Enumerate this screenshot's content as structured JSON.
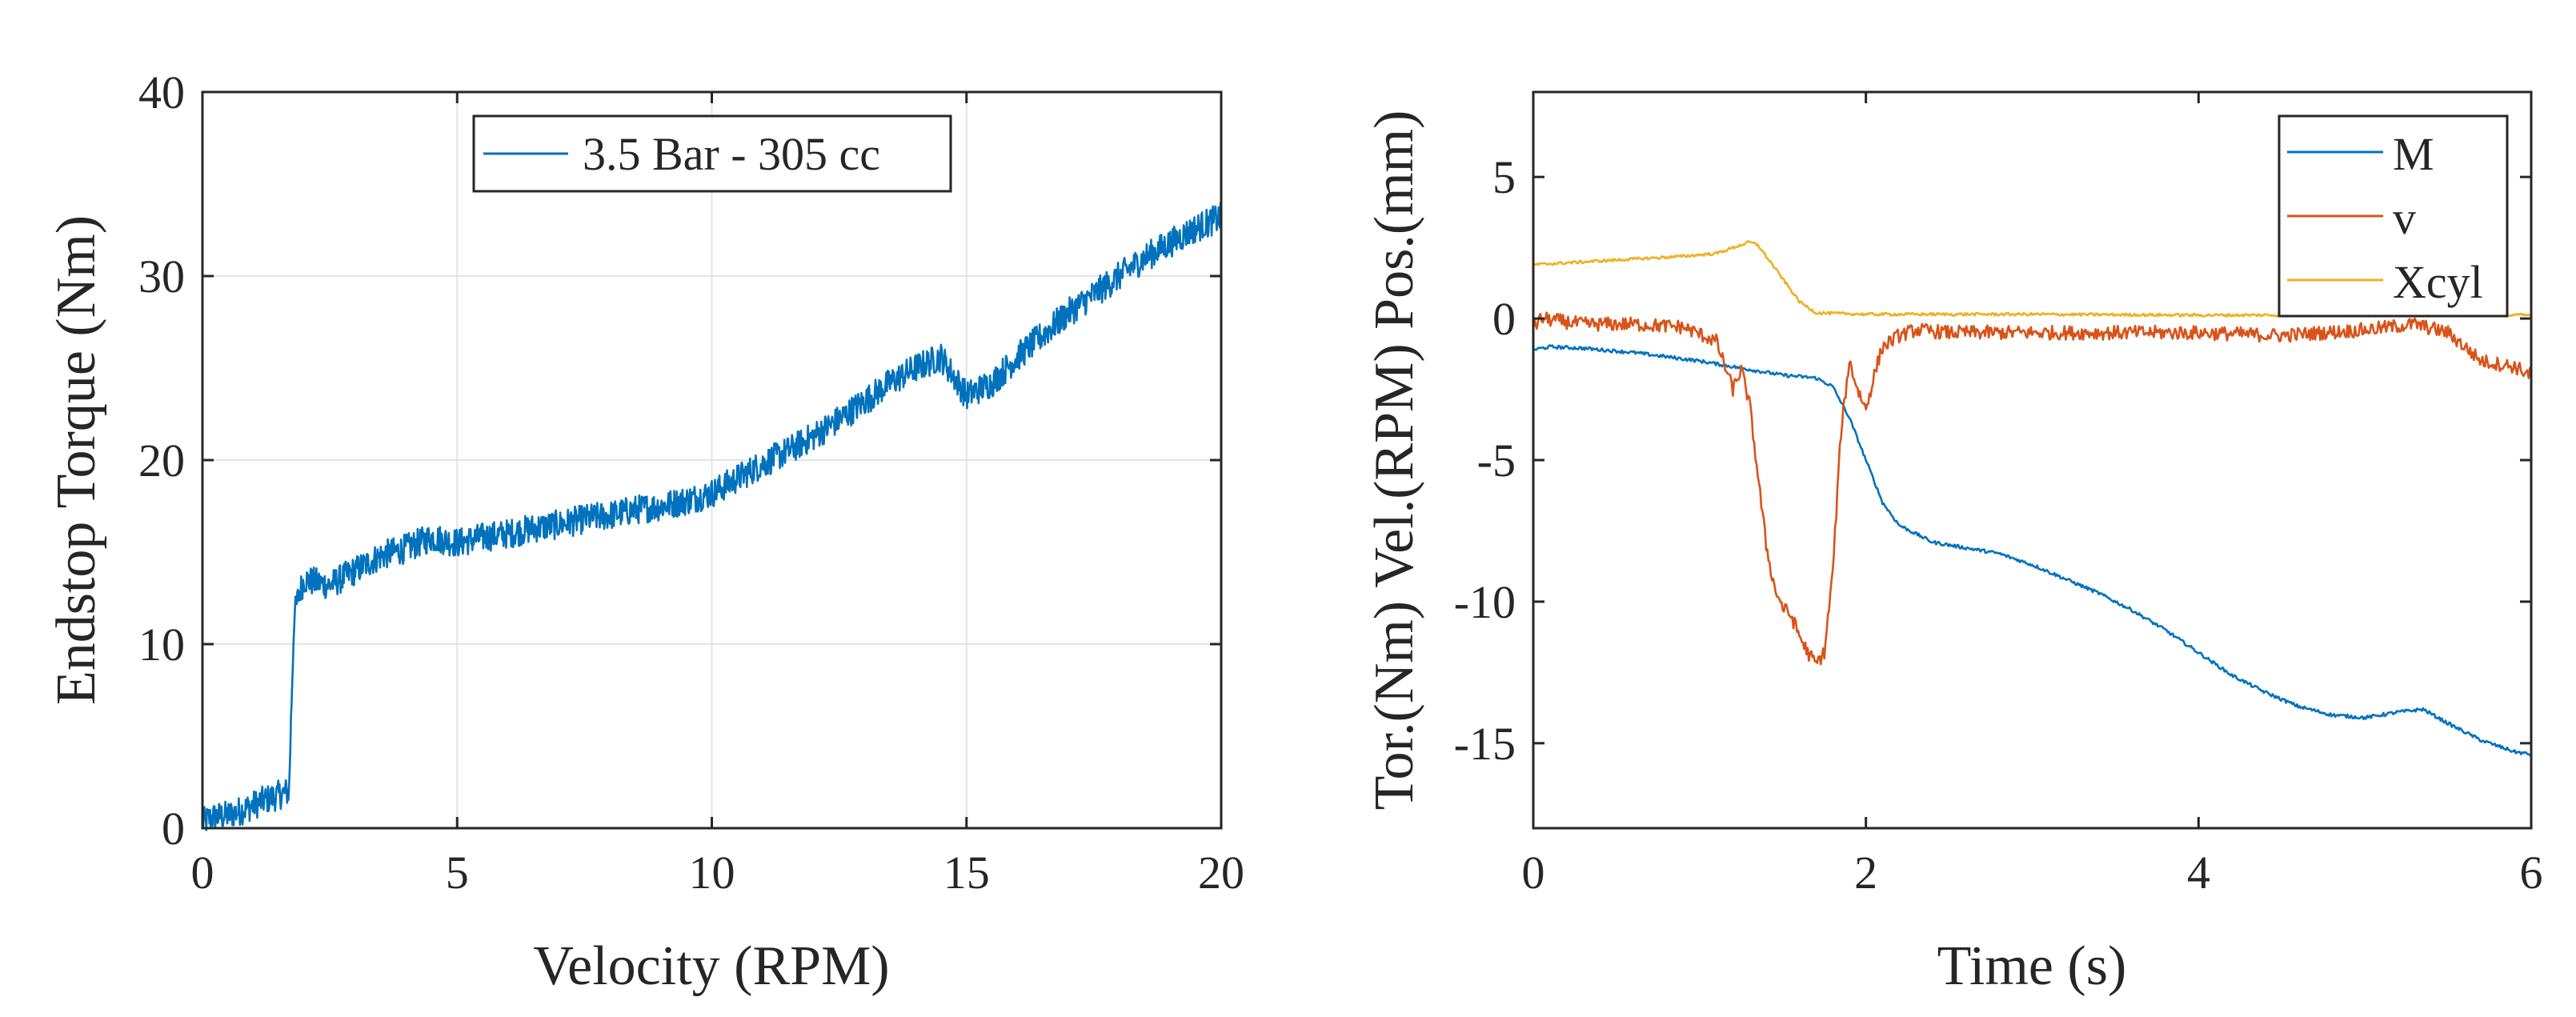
{
  "chart_data": [
    {
      "type": "line",
      "xlabel": "Velocity (RPM)",
      "ylabel": "Endstop Torque (Nm)",
      "xlim": [
        0,
        20
      ],
      "ylim": [
        0,
        40
      ],
      "xticks": [
        "0",
        "5",
        "10",
        "15",
        "20"
      ],
      "yticks": [
        "0",
        "10",
        "20",
        "30",
        "40"
      ],
      "grid": true,
      "legend_position": "top-center",
      "series": [
        {
          "name": "3.5 Bar - 305 cc",
          "color": "#0072BD",
          "x": [
            0,
            0.2,
            0.5,
            0.8,
            1.2,
            1.5,
            1.7,
            1.75,
            1.8,
            1.9,
            2.0,
            2.5,
            3.0,
            3.5,
            4.0,
            4.5,
            5.0,
            5.5,
            6.0,
            6.5,
            7.0,
            7.5,
            8.0,
            8.5,
            9.0,
            9.5,
            10.0,
            10.5,
            11.0,
            11.5,
            12.0,
            12.5,
            13.0,
            13.5,
            14.0,
            14.5,
            15.0,
            15.5,
            16.0,
            16.5,
            17.0,
            17.5,
            18.0,
            18.5,
            19.0,
            19.5,
            20.0
          ],
          "y": [
            0.3,
            0.6,
            0.7,
            1.0,
            1.5,
            1.8,
            2.0,
            7.0,
            11.5,
            12.8,
            13.5,
            13.2,
            14.0,
            14.8,
            15.2,
            15.8,
            15.5,
            15.8,
            16.0,
            16.3,
            16.5,
            16.8,
            17.0,
            17.3,
            17.5,
            17.8,
            18.2,
            19.0,
            19.8,
            20.5,
            21.3,
            22.2,
            23.2,
            24.2,
            25.0,
            25.6,
            23.5,
            24.2,
            25.6,
            26.8,
            28.0,
            29.0,
            30.0,
            31.0,
            31.8,
            32.6,
            33.2
          ],
          "noise": 0.8
        }
      ]
    },
    {
      "type": "line",
      "xlabel": "Time (s)",
      "ylabel": "Tor.(Nm) Vel.(RPM) Pos.(mm)",
      "xlim": [
        0,
        6
      ],
      "ylim": [
        -18,
        8
      ],
      "xticks": [
        "0",
        "2",
        "4",
        "6"
      ],
      "yticks": [
        "5",
        "0",
        "-5",
        "-10",
        "-15"
      ],
      "grid": false,
      "legend_position": "top-right",
      "series": [
        {
          "name": "M",
          "color": "#0072BD",
          "x": [
            0,
            0.1,
            0.3,
            0.6,
            1.0,
            1.3,
            1.5,
            1.7,
            1.8,
            1.9,
            2.0,
            2.1,
            2.2,
            2.4,
            2.6,
            2.8,
            3.0,
            3.2,
            3.4,
            3.6,
            3.8,
            4.0,
            4.2,
            4.4,
            4.6,
            4.8,
            5.0,
            5.2,
            5.35,
            5.5,
            5.7,
            5.9,
            6.0
          ],
          "y": [
            -1.1,
            -1.0,
            -1.05,
            -1.2,
            -1.5,
            -1.8,
            -2.0,
            -2.1,
            -2.4,
            -3.5,
            -5.0,
            -6.5,
            -7.3,
            -7.9,
            -8.1,
            -8.3,
            -8.7,
            -9.2,
            -9.7,
            -10.3,
            -11.0,
            -11.8,
            -12.6,
            -13.2,
            -13.7,
            -14.0,
            -14.1,
            -13.9,
            -13.8,
            -14.3,
            -14.9,
            -15.3,
            -15.4
          ],
          "noise": 0.06
        },
        {
          "name": "v",
          "color": "#D95319",
          "x": [
            0,
            0.05,
            0.3,
            0.6,
            0.9,
            1.1,
            1.2,
            1.25,
            1.3,
            1.35,
            1.4,
            1.45,
            1.5,
            1.55,
            1.6,
            1.65,
            1.7,
            1.75,
            1.8,
            1.85,
            1.9,
            1.95,
            2.0,
            2.05,
            2.1,
            2.2,
            2.3,
            2.5,
            3.0,
            3.5,
            4.0,
            4.5,
            5.0,
            5.3,
            5.5,
            5.7,
            5.9,
            6.0
          ],
          "y": [
            -0.3,
            0.0,
            -0.2,
            -0.2,
            -0.3,
            -0.8,
            -2.5,
            -1.8,
            -3.0,
            -5.5,
            -8.0,
            -9.5,
            -10.2,
            -10.5,
            -11.2,
            -11.8,
            -12.2,
            -11.8,
            -9.0,
            -4.0,
            -1.5,
            -2.5,
            -3.2,
            -2.0,
            -1.0,
            -0.6,
            -0.4,
            -0.5,
            -0.5,
            -0.5,
            -0.5,
            -0.6,
            -0.4,
            -0.2,
            -0.5,
            -1.5,
            -1.7,
            -2.0
          ],
          "noise": 0.25
        },
        {
          "name": "Xcyl",
          "color": "#EDB120",
          "x": [
            0,
            0.3,
            0.6,
            0.9,
            1.1,
            1.2,
            1.3,
            1.35,
            1.4,
            1.5,
            1.6,
            1.7,
            2.0,
            3.0,
            4.0,
            5.0,
            6.0
          ],
          "y": [
            1.9,
            2.0,
            2.1,
            2.2,
            2.3,
            2.5,
            2.7,
            2.6,
            2.2,
            1.4,
            0.6,
            0.2,
            0.15,
            0.15,
            0.12,
            0.12,
            0.12
          ],
          "noise": 0.05
        }
      ]
    }
  ]
}
